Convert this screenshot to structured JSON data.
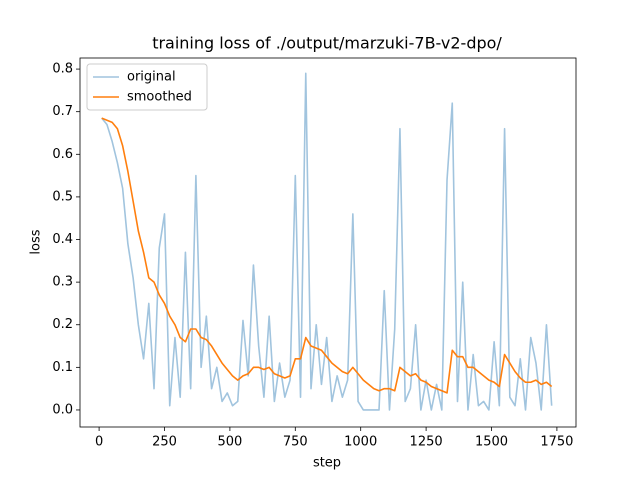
{
  "chart_data": {
    "type": "line",
    "title": "training loss of ./output/marzuki-7B-v2-dpo/",
    "xlabel": "step",
    "ylabel": "loss",
    "x": [
      10,
      30,
      50,
      70,
      90,
      110,
      130,
      150,
      170,
      190,
      210,
      230,
      250,
      270,
      290,
      310,
      330,
      350,
      370,
      390,
      410,
      430,
      450,
      470,
      490,
      510,
      530,
      550,
      570,
      590,
      610,
      630,
      650,
      670,
      690,
      710,
      730,
      750,
      770,
      790,
      810,
      830,
      850,
      870,
      890,
      910,
      930,
      950,
      970,
      990,
      1010,
      1030,
      1050,
      1070,
      1090,
      1110,
      1130,
      1150,
      1170,
      1190,
      1210,
      1230,
      1250,
      1270,
      1290,
      1310,
      1330,
      1350,
      1370,
      1390,
      1410,
      1430,
      1450,
      1470,
      1490,
      1510,
      1530,
      1550,
      1570,
      1590,
      1610,
      1630,
      1650,
      1670,
      1690,
      1710,
      1730
    ],
    "series": [
      {
        "name": "original",
        "color": "#a1c4de",
        "values": [
          0.685,
          0.67,
          0.63,
          0.58,
          0.52,
          0.39,
          0.31,
          0.2,
          0.12,
          0.25,
          0.05,
          0.38,
          0.46,
          0.01,
          0.17,
          0.03,
          0.37,
          0.05,
          0.55,
          0.1,
          0.22,
          0.05,
          0.1,
          0.02,
          0.04,
          0.01,
          0.02,
          0.21,
          0.08,
          0.34,
          0.15,
          0.03,
          0.22,
          0.02,
          0.11,
          0.03,
          0.07,
          0.55,
          0.03,
          0.79,
          0.05,
          0.2,
          0.06,
          0.17,
          0.02,
          0.08,
          0.03,
          0.07,
          0.46,
          0.02,
          0.0,
          0.0,
          0.0,
          0.0,
          0.28,
          0.0,
          0.19,
          0.66,
          0.02,
          0.05,
          0.2,
          0.0,
          0.07,
          0.0,
          0.06,
          0.0,
          0.54,
          0.72,
          0.02,
          0.3,
          0.0,
          0.13,
          0.01,
          0.02,
          0.0,
          0.16,
          0.01,
          0.66,
          0.03,
          0.01,
          0.12,
          0.0,
          0.17,
          0.11,
          0.0,
          0.2,
          0.01
        ]
      },
      {
        "name": "smoothed",
        "color": "#ff7f0e",
        "values": [
          0.685,
          0.68,
          0.675,
          0.66,
          0.62,
          0.56,
          0.49,
          0.42,
          0.37,
          0.31,
          0.3,
          0.27,
          0.25,
          0.22,
          0.2,
          0.17,
          0.16,
          0.19,
          0.19,
          0.17,
          0.165,
          0.15,
          0.13,
          0.11,
          0.095,
          0.08,
          0.07,
          0.08,
          0.085,
          0.1,
          0.1,
          0.095,
          0.1,
          0.085,
          0.08,
          0.075,
          0.08,
          0.12,
          0.12,
          0.17,
          0.15,
          0.145,
          0.14,
          0.125,
          0.11,
          0.1,
          0.09,
          0.085,
          0.1,
          0.085,
          0.07,
          0.06,
          0.05,
          0.045,
          0.05,
          0.05,
          0.045,
          0.1,
          0.09,
          0.08,
          0.085,
          0.07,
          0.065,
          0.055,
          0.05,
          0.045,
          0.04,
          0.14,
          0.125,
          0.125,
          0.1,
          0.1,
          0.09,
          0.08,
          0.07,
          0.065,
          0.055,
          0.13,
          0.11,
          0.09,
          0.075,
          0.065,
          0.065,
          0.07,
          0.06,
          0.065,
          0.055
        ]
      }
    ],
    "xlim": [
      -73,
      1823
    ],
    "ylim": [
      -0.04,
      0.826
    ],
    "xticks": [
      0,
      250,
      500,
      750,
      1000,
      1250,
      1500,
      1750
    ],
    "yticks": [
      {
        "value": 0,
        "label": "0.0"
      },
      0.1,
      0.2,
      0.3,
      0.4,
      0.5,
      0.6,
      0.7,
      0.8
    ],
    "legend": "upper left"
  }
}
